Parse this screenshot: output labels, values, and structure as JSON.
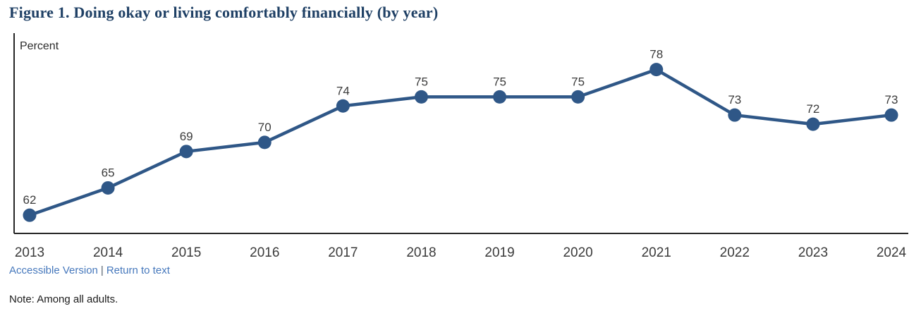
{
  "figure": {
    "title": "Figure 1. Doing okay or living comfortably financially (by year)",
    "y_axis_unit_label": "Percent",
    "note": "Note: Among all adults."
  },
  "links": {
    "accessible_version": "Accessible Version",
    "separator": "|",
    "return_to_text": "Return to text"
  },
  "colors": {
    "title": "#1f4065",
    "line": "#2f5787",
    "marker": "#2f5787",
    "axis": "#262626",
    "value_label": "#3b3b3b",
    "tick_label": "#3b3b3b",
    "link": "#4678bc",
    "note": "#1c1c1c",
    "background": "#ffffff"
  },
  "chart_data": {
    "type": "line",
    "categories": [
      "2013",
      "2014",
      "2015",
      "2016",
      "2017",
      "2018",
      "2019",
      "2020",
      "2021",
      "2022",
      "2023",
      "2024"
    ],
    "series": [
      {
        "name": "Doing okay or living comfortably financially",
        "values": [
          62,
          65,
          69,
          70,
          74,
          75,
          75,
          75,
          78,
          73,
          72,
          73
        ]
      }
    ],
    "title": "Figure 1. Doing okay or living comfortably financially (by year)",
    "xlabel": "",
    "ylabel": "Percent",
    "ylim": [
      60,
      82
    ],
    "grid": false,
    "data_labels": true,
    "markers": true,
    "legend_position": "none"
  }
}
